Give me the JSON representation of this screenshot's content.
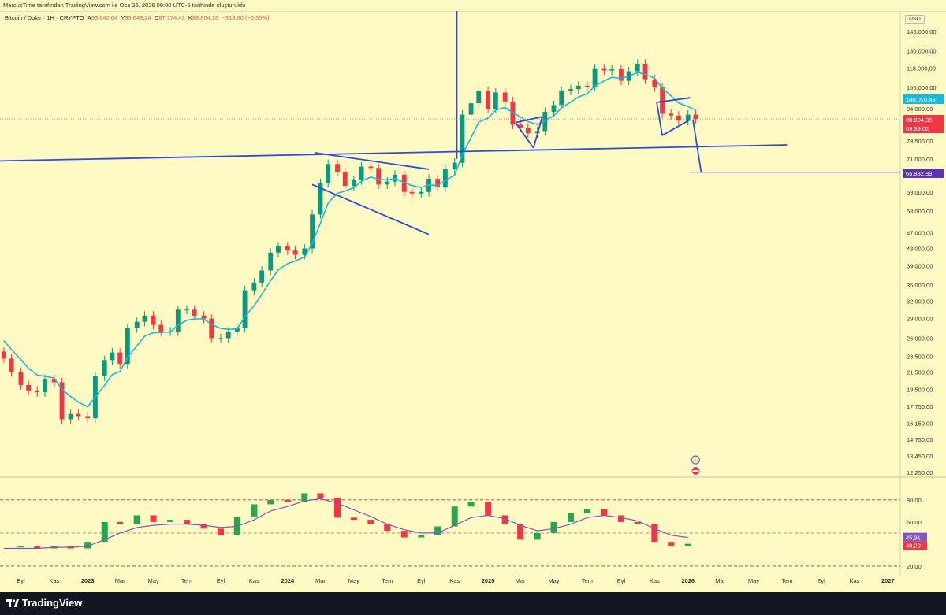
{
  "header": {
    "author_line": "MarcusTime tarafından TradingView.com ile Oca 25, 2026 09:00 UTC-5 tarihinde oluşturuldu"
  },
  "legend": {
    "symbol": "Bitcoin / Dolar · 1H · CRYPTO",
    "open_label": "A",
    "open_value": "93.642,64",
    "high_label": "Y",
    "high_value": "93.643,24",
    "low_label": "D",
    "low_value": "87.174,43",
    "close_label": "K",
    "close_value": "88.804,35",
    "change_value": "−313,60 (−0,35%)"
  },
  "footer": {
    "brand": "TradingView"
  },
  "chart_data": [
    {
      "type": "candlestick",
      "title": "Bitcoin / Dolar · 1H · CRYPTO",
      "currency": "USD",
      "scale": "log",
      "y_tick_labels": [
        "145.000,00",
        "130.000,00",
        "118.000,00",
        "106.000,00",
        "94.000,00",
        "85.000,00",
        "78.500,00",
        "71.000,00",
        "65.000,00",
        "59.000,00",
        "53.000,00",
        "47.000,00",
        "43.000,00",
        "39.000,00",
        "35.000,00",
        "32.000,00",
        "29.000,00",
        "26.000,00",
        "23.500,00",
        "21.500,00",
        "19.500,00",
        "17.750,00",
        "16.150,00",
        "14.750,00",
        "13.450,00",
        "12.250,00"
      ],
      "y_ticks": [
        145000,
        130000,
        118000,
        106000,
        94000,
        85000,
        78500,
        71000,
        65000,
        59000,
        53000,
        47000,
        43000,
        39000,
        35000,
        32000,
        29000,
        26000,
        23500,
        21500,
        19500,
        17750,
        16150,
        14750,
        13450,
        12250
      ],
      "ylim": [
        12250,
        145000
      ],
      "x_tick_labels": [
        "Eyl",
        "Kas",
        "2023",
        "Mar",
        "May",
        "Tem",
        "Eyl",
        "Kas",
        "2024",
        "Mar",
        "May",
        "Tem",
        "Eyl",
        "Kas",
        "2025",
        "Mar",
        "May",
        "Tem",
        "Eyl",
        "Kas",
        "2026",
        "Mar",
        "May",
        "Tem",
        "Eyl",
        "Kas",
        "2027"
      ],
      "x_ticks": [
        "2022-09",
        "2022-11",
        "2023-01",
        "2023-03",
        "2023-05",
        "2023-07",
        "2023-09",
        "2023-11",
        "2024-01",
        "2024-03",
        "2024-05",
        "2024-07",
        "2024-09",
        "2024-11",
        "2025-01",
        "2025-03",
        "2025-05",
        "2025-07",
        "2025-09",
        "2025-11",
        "2026-01",
        "2026-03",
        "2026-05",
        "2026-07",
        "2026-09",
        "2026-11",
        "2027-01"
      ],
      "x_range": [
        "2022-07-25",
        "2027-01-25"
      ],
      "x": [
        "2022-08-01",
        "2022-08-15",
        "2022-09-01",
        "2022-09-15",
        "2022-10-01",
        "2022-10-15",
        "2022-11-01",
        "2022-11-15",
        "2022-12-01",
        "2022-12-15",
        "2023-01-01",
        "2023-01-15",
        "2023-02-01",
        "2023-02-15",
        "2023-03-01",
        "2023-03-15",
        "2023-04-01",
        "2023-04-15",
        "2023-05-01",
        "2023-05-15",
        "2023-06-01",
        "2023-06-15",
        "2023-07-01",
        "2023-07-15",
        "2023-08-01",
        "2023-08-15",
        "2023-09-01",
        "2023-09-15",
        "2023-10-01",
        "2023-10-15",
        "2023-11-01",
        "2023-11-15",
        "2023-12-01",
        "2023-12-15",
        "2024-01-01",
        "2024-01-15",
        "2024-02-01",
        "2024-02-15",
        "2024-03-01",
        "2024-03-15",
        "2024-04-01",
        "2024-04-15",
        "2024-05-01",
        "2024-05-15",
        "2024-06-01",
        "2024-06-15",
        "2024-07-01",
        "2024-07-15",
        "2024-08-01",
        "2024-08-15",
        "2024-09-01",
        "2024-09-15",
        "2024-10-01",
        "2024-10-15",
        "2024-11-01",
        "2024-11-15",
        "2024-12-01",
        "2024-12-15",
        "2025-01-01",
        "2025-01-15",
        "2025-02-01",
        "2025-02-15",
        "2025-03-01",
        "2025-03-15",
        "2025-04-01",
        "2025-04-15",
        "2025-05-01",
        "2025-05-15",
        "2025-06-01",
        "2025-06-15",
        "2025-07-01",
        "2025-07-15",
        "2025-08-01",
        "2025-08-15",
        "2025-09-01",
        "2025-09-15",
        "2025-10-01",
        "2025-10-15",
        "2025-11-01",
        "2025-11-15",
        "2025-12-01",
        "2025-12-15",
        "2026-01-01",
        "2026-01-15"
      ],
      "close": [
        23200,
        21500,
        20000,
        19400,
        19200,
        20700,
        20300,
        16500,
        17000,
        16800,
        16600,
        21000,
        23000,
        24000,
        22500,
        27500,
        28500,
        29500,
        28000,
        27000,
        27000,
        30500,
        30500,
        29500,
        29000,
        26000,
        26000,
        27000,
        27500,
        34000,
        35500,
        38000,
        42000,
        43500,
        42500,
        41500,
        43000,
        52000,
        62000,
        69000,
        66000,
        61000,
        63000,
        68000,
        67500,
        61500,
        62500,
        65000,
        59000,
        58500,
        59000,
        63500,
        60500,
        67000,
        69500,
        91000,
        97000,
        104000,
        94000,
        103000,
        98000,
        86000,
        84500,
        82000,
        83000,
        92500,
        96000,
        104000,
        105000,
        107000,
        106500,
        118000,
        116500,
        117500,
        110000,
        116000,
        121000,
        111000,
        106000,
        91500,
        90500,
        88000,
        91000,
        88804
      ]
    },
    {
      "type": "line",
      "indicator": "RSI",
      "y_tick_labels": [
        "80,00",
        "60,00",
        "20,00"
      ],
      "y_ticks": [
        80,
        60,
        20
      ],
      "ylim": [
        15,
        92
      ],
      "dashed_levels": [
        80,
        50,
        20
      ],
      "last_values": [
        "45,91",
        "40,20"
      ],
      "x": [
        "2022-08-01",
        "2022-09-01",
        "2022-10-01",
        "2022-11-01",
        "2022-12-01",
        "2023-01-01",
        "2023-02-01",
        "2023-03-01",
        "2023-04-01",
        "2023-05-01",
        "2023-06-01",
        "2023-07-01",
        "2023-08-01",
        "2023-09-01",
        "2023-10-01",
        "2023-11-01",
        "2023-12-01",
        "2024-01-01",
        "2024-02-01",
        "2024-03-01",
        "2024-04-01",
        "2024-05-01",
        "2024-06-01",
        "2024-07-01",
        "2024-08-01",
        "2024-09-01",
        "2024-10-01",
        "2024-11-01",
        "2024-12-01",
        "2025-01-01",
        "2025-02-01",
        "2025-03-01",
        "2025-04-01",
        "2025-05-01",
        "2025-06-01",
        "2025-07-01",
        "2025-08-01",
        "2025-09-01",
        "2025-10-01",
        "2025-11-01",
        "2025-12-01",
        "2026-01-01"
      ],
      "series": [
        {
          "values": [
            37,
            38,
            36,
            38,
            36,
            42,
            60,
            58,
            66,
            60,
            62,
            58,
            54,
            48,
            65,
            76,
            80,
            78,
            86,
            82,
            64,
            62,
            58,
            52,
            46,
            48,
            56,
            74,
            78,
            66,
            58,
            44,
            50,
            60,
            68,
            72,
            66,
            60,
            58,
            42,
            38,
            40.2
          ]
        },
        {
          "values": [
            36,
            36,
            36,
            37,
            37,
            38,
            44,
            50,
            55,
            57,
            58,
            58,
            57,
            55,
            56,
            62,
            70,
            74,
            79,
            81,
            77,
            71,
            65,
            58,
            53,
            50,
            50,
            57,
            64,
            66,
            63,
            57,
            52,
            54,
            58,
            64,
            66,
            64,
            61,
            54,
            48,
            45.91
          ]
        }
      ]
    }
  ],
  "annotations": {
    "current_price": "88.804,35",
    "countdown": "09:59:02",
    "ema_value": "100.010,49",
    "target_price": "65.882,89"
  },
  "colors": {
    "background": "#fff9c4",
    "up": "#089981",
    "down": "#f23645",
    "ema": "#1cb8d8",
    "drawing": "#2f4bdc",
    "rsi_line": "#7e57c2",
    "rsi_ma": "#9c27b0",
    "rsi_up": "#26a651",
    "rsi_down": "#f23645",
    "level_red": "#d32f2f",
    "level_green": "#2e7d32"
  }
}
